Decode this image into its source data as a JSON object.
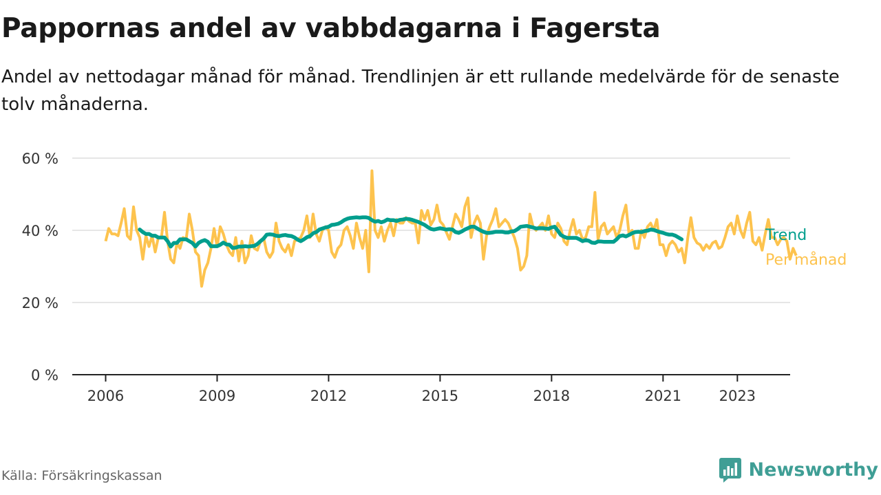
{
  "title": "Pappornas andel av vabbdagarna i Fagersta",
  "subtitle": "Andel av nettodagar månad för månad. Trendlinjen är ett rullande medelvärde för de senaste tolv månaderna.",
  "source": "Källa: Försäkringskassan",
  "brand": "Newsworthy",
  "colors": {
    "monthly": "#fdc34e",
    "trend": "#009e8d",
    "grid": "#dddddd",
    "axis": "#222222",
    "brand": "#3f9e95"
  },
  "icons": {
    "brand": "bar-chart-speech-bubble-icon"
  },
  "chart_data": {
    "type": "line",
    "x_unit": "year",
    "x_range": [
      2006,
      2023.42
    ],
    "xlim": [
      2005.2,
      2024.1
    ],
    "ylim": [
      0,
      60
    ],
    "y_ticks": [
      0,
      20,
      40,
      60
    ],
    "y_tick_labels": [
      "0 %",
      "20 %",
      "40 %",
      "60 %"
    ],
    "x_ticks": [
      2006,
      2009,
      2012,
      2015,
      2018,
      2021,
      2023
    ],
    "x_tick_labels": [
      "2006",
      "2009",
      "2012",
      "2015",
      "2018",
      "2021",
      "2023"
    ],
    "grid": true,
    "legend": "right-end-labels",
    "series": [
      {
        "name": "Per månad",
        "start": 2006,
        "step": 0.0833333,
        "values": [
          37,
          40.5,
          39,
          39,
          38.5,
          42,
          46,
          38.5,
          37.5,
          46.5,
          40,
          38,
          32,
          38.5,
          35.5,
          38.5,
          34,
          38,
          38,
          45,
          37,
          32,
          31,
          36.5,
          35,
          38,
          37.5,
          44.5,
          40,
          34,
          33,
          24.5,
          29,
          31,
          35,
          40.5,
          35.5,
          41,
          39,
          36,
          34,
          33,
          38,
          31.5,
          37,
          31,
          33,
          38.5,
          35,
          34.5,
          37,
          38,
          34,
          32.5,
          34,
          42,
          37,
          35,
          34,
          36,
          33,
          37,
          37.5,
          38,
          40,
          44,
          38,
          44.5,
          39,
          37,
          40,
          41,
          40,
          34,
          32.5,
          35,
          36,
          40,
          41,
          38.5,
          35,
          42,
          38,
          35,
          40,
          28.5,
          56.5,
          40,
          38,
          41,
          37,
          40,
          42,
          38.5,
          43,
          42,
          42,
          43.5,
          42.5,
          42,
          42,
          36.5,
          45.5,
          43,
          45.5,
          41.5,
          43,
          47,
          42.5,
          41.5,
          39.5,
          37.5,
          41,
          44.5,
          43,
          41,
          46.5,
          49,
          38,
          42,
          44,
          42,
          32,
          38.5,
          41,
          43,
          46,
          41,
          42,
          43,
          42,
          40,
          38,
          35,
          29,
          30,
          33,
          44.5,
          41,
          40,
          41,
          42,
          40,
          44,
          39,
          38,
          42,
          40.5,
          37,
          36,
          40,
          43,
          39,
          40,
          37.5,
          38,
          41,
          41,
          50.5,
          37.5,
          41,
          42,
          39,
          40,
          41,
          38,
          40,
          44,
          47,
          39,
          40,
          35,
          35,
          40,
          38,
          41,
          42,
          40,
          43,
          36,
          36,
          33,
          36,
          37,
          36,
          34,
          35,
          31,
          38,
          43.5,
          38,
          36.5,
          36,
          34.5,
          36,
          35,
          36.5,
          37,
          35,
          35.5,
          38,
          41,
          42,
          39,
          44,
          40,
          38,
          42,
          45,
          37,
          36,
          38,
          34.5,
          39,
          43,
          38,
          38,
          36,
          37.5,
          38,
          37,
          32,
          35,
          33
        ]
      },
      {
        "name": "Trend",
        "start": 2006.917,
        "step": 0.0833333,
        "values": [
          40.2,
          39.5,
          39,
          39,
          38.5,
          38.5,
          38,
          38,
          38,
          37,
          35.5,
          36.5,
          36.5,
          37.5,
          37.5,
          37.5,
          37,
          36.5,
          35.5,
          36.5,
          37,
          37.3,
          36.8,
          35.6,
          35.6,
          35.6,
          36,
          36.6,
          36.1,
          36,
          35.1,
          35.2,
          35.5,
          35.5,
          35.6,
          35.5,
          35.6,
          35.7,
          36.2,
          37,
          37.7,
          38.8,
          38.9,
          38.8,
          38.5,
          38.4,
          38.6,
          38.7,
          38.5,
          38.4,
          38,
          37.4,
          37,
          37.5,
          38.1,
          38.4,
          39.2,
          39.5,
          40.2,
          40.5,
          40.8,
          41,
          41.5,
          41.6,
          41.8,
          42.2,
          42.8,
          43.2,
          43.4,
          43.5,
          43.6,
          43.5,
          43.6,
          43.6,
          43.4,
          42.8,
          42.4,
          42.6,
          42.2,
          42.5,
          43,
          42.8,
          42.8,
          42.6,
          42.9,
          43,
          43.2,
          43.1,
          42.9,
          42.6,
          42.3,
          41.9,
          41.5,
          40.9,
          40.4,
          40.2,
          40.4,
          40.6,
          40.4,
          40.2,
          40.3,
          40.2,
          39.5,
          39.3,
          39.7,
          40.2,
          40.6,
          41,
          41,
          40.5,
          40,
          39.6,
          39.3,
          39.3,
          39.4,
          39.6,
          39.6,
          39.6,
          39.4,
          39.4,
          39.7,
          39.8,
          40.3,
          41,
          41.1,
          41.2,
          41,
          40.8,
          40.5,
          40.6,
          40.6,
          40.5,
          40.4,
          40.8,
          41,
          39.9,
          38.7,
          38.2,
          37.9,
          37.9,
          37.9,
          37.9,
          37.5,
          37,
          37.3,
          37.1,
          36.6,
          36.5,
          36.9,
          36.9,
          36.8,
          36.8,
          36.8,
          36.8,
          37.5,
          38.4,
          38.6,
          38.3,
          38.7,
          39.2,
          39.5,
          39.6,
          39.5,
          39.8,
          39.9,
          40.2,
          40.1,
          39.8,
          39.5,
          39.3,
          39,
          38.8,
          38.8,
          38.5,
          38,
          37.5
        ]
      }
    ]
  }
}
